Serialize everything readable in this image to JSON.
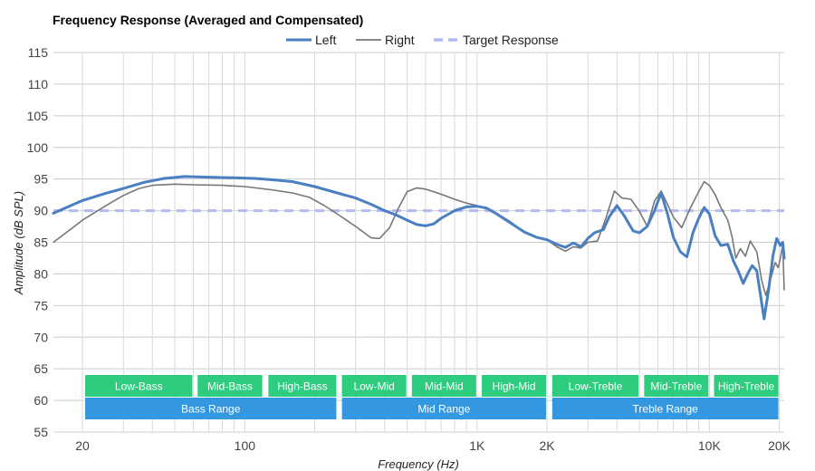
{
  "chart_data": {
    "type": "line",
    "title": "Frequency Response (Averaged and Compensated)",
    "xlabel": "Frequency (Hz)",
    "ylabel": "Amplitude (dB SPL)",
    "x_scale": "log",
    "xlim": [
      15,
      21000
    ],
    "ylim": [
      55,
      115
    ],
    "x_ticks": [
      {
        "value": 20,
        "label": "20"
      },
      {
        "value": 100,
        "label": "100"
      },
      {
        "value": 1000,
        "label": "1K"
      },
      {
        "value": 2000,
        "label": "2K"
      },
      {
        "value": 10000,
        "label": "10K"
      },
      {
        "value": 20000,
        "label": "20K"
      }
    ],
    "y_ticks": [
      55,
      60,
      65,
      70,
      75,
      80,
      85,
      90,
      95,
      100,
      105,
      110,
      115
    ],
    "grid": true,
    "legend_position": "top",
    "series": [
      {
        "name": "Left",
        "color": "#4a7fc1",
        "style": "solid",
        "points": [
          [
            15,
            89.6
          ],
          [
            20,
            91.6
          ],
          [
            25,
            92.7
          ],
          [
            30,
            93.5
          ],
          [
            37,
            94.5
          ],
          [
            45,
            95.1
          ],
          [
            55,
            95.4
          ],
          [
            70,
            95.3
          ],
          [
            90,
            95.2
          ],
          [
            110,
            95.1
          ],
          [
            130,
            94.9
          ],
          [
            160,
            94.6
          ],
          [
            200,
            93.8
          ],
          [
            250,
            92.8
          ],
          [
            300,
            92.0
          ],
          [
            350,
            91.0
          ],
          [
            400,
            90.0
          ],
          [
            450,
            89.3
          ],
          [
            500,
            88.5
          ],
          [
            550,
            87.8
          ],
          [
            600,
            87.6
          ],
          [
            650,
            87.9
          ],
          [
            700,
            88.8
          ],
          [
            800,
            90.0
          ],
          [
            900,
            90.6
          ],
          [
            1000,
            90.7
          ],
          [
            1100,
            90.4
          ],
          [
            1200,
            89.6
          ],
          [
            1400,
            88.0
          ],
          [
            1600,
            86.6
          ],
          [
            1800,
            85.8
          ],
          [
            2000,
            85.4
          ],
          [
            2200,
            84.7
          ],
          [
            2400,
            84.2
          ],
          [
            2600,
            84.9
          ],
          [
            2800,
            84.3
          ],
          [
            3000,
            85.6
          ],
          [
            3200,
            86.5
          ],
          [
            3500,
            87.0
          ],
          [
            3700,
            89.0
          ],
          [
            4000,
            90.8
          ],
          [
            4300,
            89.2
          ],
          [
            4700,
            86.8
          ],
          [
            5000,
            86.5
          ],
          [
            5400,
            87.5
          ],
          [
            5800,
            90.0
          ],
          [
            6200,
            92.8
          ],
          [
            6600,
            89.5
          ],
          [
            7000,
            85.8
          ],
          [
            7500,
            83.5
          ],
          [
            8000,
            82.7
          ],
          [
            8500,
            86.5
          ],
          [
            9000,
            88.8
          ],
          [
            9500,
            90.5
          ],
          [
            10000,
            89.5
          ],
          [
            10600,
            86.0
          ],
          [
            11200,
            84.5
          ],
          [
            12000,
            84.7
          ],
          [
            12700,
            82.0
          ],
          [
            13300,
            80.5
          ],
          [
            14000,
            78.5
          ],
          [
            14700,
            80.2
          ],
          [
            15300,
            81.3
          ],
          [
            16000,
            80.5
          ],
          [
            16700,
            76.0
          ],
          [
            17200,
            72.9
          ],
          [
            18000,
            77.5
          ],
          [
            18800,
            83.0
          ],
          [
            19500,
            85.6
          ],
          [
            20200,
            84.5
          ],
          [
            20700,
            85.0
          ],
          [
            21000,
            82.5
          ]
        ]
      },
      {
        "name": "Right",
        "color": "#777777",
        "style": "solid",
        "points": [
          [
            15,
            85.0
          ],
          [
            18,
            87.2
          ],
          [
            20,
            88.5
          ],
          [
            25,
            90.7
          ],
          [
            30,
            92.4
          ],
          [
            35,
            93.5
          ],
          [
            40,
            94.0
          ],
          [
            50,
            94.2
          ],
          [
            60,
            94.1
          ],
          [
            80,
            94.0
          ],
          [
            100,
            93.8
          ],
          [
            130,
            93.3
          ],
          [
            160,
            92.8
          ],
          [
            190,
            92.1
          ],
          [
            220,
            90.8
          ],
          [
            250,
            89.5
          ],
          [
            300,
            87.5
          ],
          [
            350,
            85.7
          ],
          [
            380,
            85.6
          ],
          [
            420,
            87.3
          ],
          [
            460,
            90.5
          ],
          [
            500,
            93.0
          ],
          [
            550,
            93.6
          ],
          [
            600,
            93.4
          ],
          [
            700,
            92.6
          ],
          [
            800,
            91.8
          ],
          [
            900,
            91.2
          ],
          [
            1000,
            90.8
          ],
          [
            1100,
            90.3
          ],
          [
            1200,
            89.7
          ],
          [
            1400,
            88.2
          ],
          [
            1600,
            86.5
          ],
          [
            1800,
            85.8
          ],
          [
            2000,
            85.4
          ],
          [
            2200,
            84.3
          ],
          [
            2400,
            83.6
          ],
          [
            2600,
            84.3
          ],
          [
            2800,
            84.1
          ],
          [
            3000,
            85.0
          ],
          [
            3300,
            85.2
          ],
          [
            3600,
            89.0
          ],
          [
            3900,
            93.1
          ],
          [
            4200,
            92.0
          ],
          [
            4600,
            91.8
          ],
          [
            5000,
            89.9
          ],
          [
            5400,
            87.5
          ],
          [
            5800,
            91.5
          ],
          [
            6200,
            93.1
          ],
          [
            6600,
            91.0
          ],
          [
            7000,
            89.0
          ],
          [
            7600,
            87.3
          ],
          [
            8300,
            90.5
          ],
          [
            9000,
            93.0
          ],
          [
            9500,
            94.6
          ],
          [
            10000,
            94.0
          ],
          [
            10600,
            92.5
          ],
          [
            11200,
            90.5
          ],
          [
            12000,
            88.5
          ],
          [
            12500,
            86.0
          ],
          [
            13000,
            82.5
          ],
          [
            13600,
            84.0
          ],
          [
            14300,
            82.8
          ],
          [
            15000,
            85.2
          ],
          [
            16000,
            83.5
          ],
          [
            16800,
            79.0
          ],
          [
            17500,
            76.6
          ],
          [
            18300,
            79.0
          ],
          [
            19200,
            81.8
          ],
          [
            19800,
            81.0
          ],
          [
            20300,
            82.8
          ],
          [
            20700,
            84.6
          ],
          [
            21000,
            77.5
          ]
        ]
      },
      {
        "name": "Target Response",
        "color": "#b3b9f2",
        "style": "dashed",
        "points": [
          [
            15,
            90
          ],
          [
            21000,
            90
          ]
        ]
      }
    ],
    "bands": [
      {
        "label": "Low-Bass",
        "row": 1,
        "from": 20,
        "to": 60,
        "color": "#2ecc7f"
      },
      {
        "label": "Mid-Bass",
        "row": 1,
        "from": 61,
        "to": 120,
        "color": "#2ecc7f"
      },
      {
        "label": "High-Bass",
        "row": 1,
        "from": 123,
        "to": 250,
        "color": "#2ecc7f"
      },
      {
        "label": "Low-Mid",
        "row": 1,
        "from": 255,
        "to": 500,
        "color": "#2ecc7f"
      },
      {
        "label": "Mid-Mid",
        "row": 1,
        "from": 510,
        "to": 1000,
        "color": "#2ecc7f"
      },
      {
        "label": "High-Mid",
        "row": 1,
        "from": 1020,
        "to": 2000,
        "color": "#2ecc7f"
      },
      {
        "label": "Low-Treble",
        "row": 1,
        "from": 2050,
        "to": 5000,
        "color": "#2ecc7f"
      },
      {
        "label": "Mid-Treble",
        "row": 1,
        "from": 5100,
        "to": 10000,
        "color": "#2ecc7f"
      },
      {
        "label": "High-Treble",
        "row": 1,
        "from": 10200,
        "to": 20000,
        "color": "#2ecc7f"
      },
      {
        "label": "Bass Range",
        "row": 2,
        "from": 20,
        "to": 250,
        "color": "#3498e0"
      },
      {
        "label": "Mid Range",
        "row": 2,
        "from": 255,
        "to": 2000,
        "color": "#3498e0"
      },
      {
        "label": "Treble Range",
        "row": 2,
        "from": 2050,
        "to": 20000,
        "color": "#3498e0"
      }
    ]
  }
}
